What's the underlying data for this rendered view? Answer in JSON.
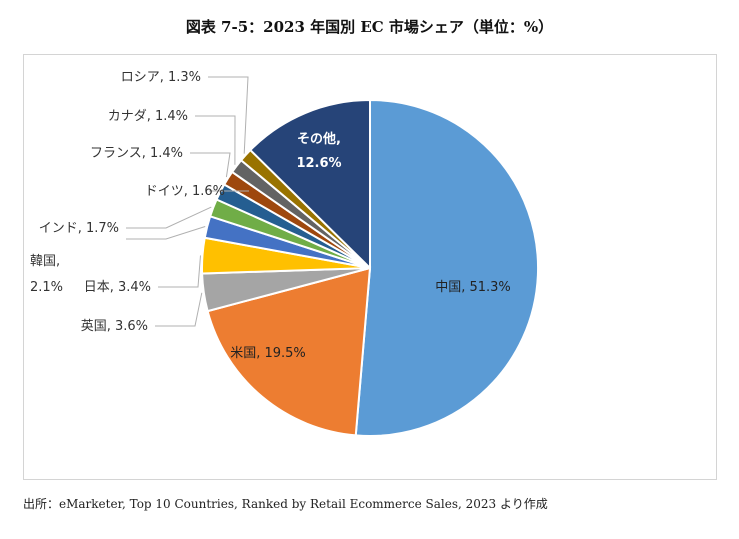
{
  "figure": {
    "title": "図表 7-5：2023 年国別 EC 市場シェア（単位：%）",
    "source": "出所：eMarketer, Top 10 Countries, Ranked by Retail Ecommerce Sales, 2023 より作成"
  },
  "chart_data": {
    "type": "pie",
    "unit": "%",
    "start_angle_deg": 0,
    "direction": "clockwise",
    "slices": [
      {
        "label": "中国",
        "value": 51.3,
        "color": "#5b9bd5",
        "label_text": "中国, 51.3%"
      },
      {
        "label": "米国",
        "value": 19.5,
        "color": "#ed7d31",
        "label_text": "米国, 19.5%"
      },
      {
        "label": "英国",
        "value": 3.6,
        "color": "#a5a5a5",
        "label_text": "英国, 3.6%"
      },
      {
        "label": "日本",
        "value": 3.4,
        "color": "#ffc000",
        "label_text": "日本, 3.4%"
      },
      {
        "label": "韓国",
        "value": 2.1,
        "color": "#4472c4",
        "label_text": [
          "韓国,",
          "2.1%"
        ]
      },
      {
        "label": "インド",
        "value": 1.7,
        "color": "#70ad47",
        "label_text": "インド, 1.7%"
      },
      {
        "label": "ドイツ",
        "value": 1.6,
        "color": "#255e91",
        "label_text": "ドイツ, 1.6%"
      },
      {
        "label": "フランス",
        "value": 1.4,
        "color": "#9e480e",
        "label_text": "フランス, 1.4%"
      },
      {
        "label": "カナダ",
        "value": 1.4,
        "color": "#636363",
        "label_text": "カナダ, 1.4%"
      },
      {
        "label": "ロシア",
        "value": 1.3,
        "color": "#997300",
        "label_text": "ロシア, 1.3%"
      },
      {
        "label": "その他",
        "value": 12.6,
        "color": "#264478",
        "label_text": [
          "その他,",
          "12.6%"
        ]
      }
    ]
  }
}
